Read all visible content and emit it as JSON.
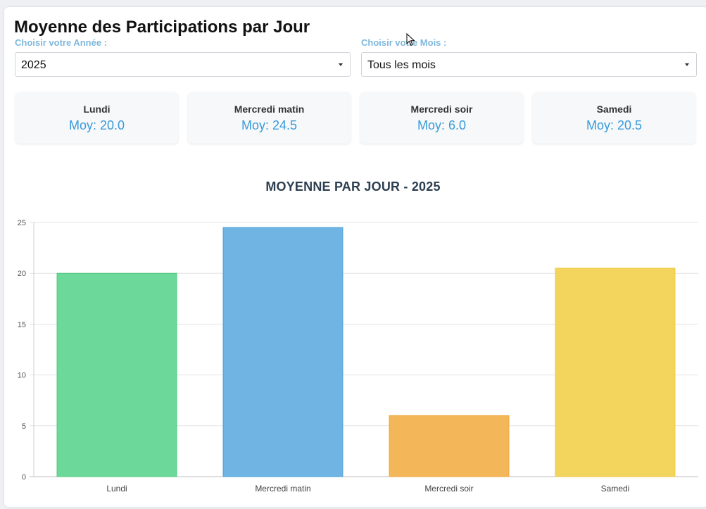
{
  "header": {
    "title": "Moyenne des Participations par Jour"
  },
  "filters": {
    "year_label": "Choisir votre Année :",
    "year_value": "2025",
    "month_label": "Choisir votre Mois :",
    "month_value": "Tous les mois"
  },
  "stats": [
    {
      "day": "Lundi",
      "avg": "Moy: 20.0"
    },
    {
      "day": "Mercredi matin",
      "avg": "Moy: 24.5"
    },
    {
      "day": "Mercredi soir",
      "avg": "Moy: 6.0"
    },
    {
      "day": "Samedi",
      "avg": "Moy: 20.5"
    }
  ],
  "chart_data": {
    "type": "bar",
    "title": "MOYENNE PAR JOUR - 2025",
    "categories": [
      "Lundi",
      "Mercredi matin",
      "Mercredi soir",
      "Samedi"
    ],
    "values": [
      20.0,
      24.5,
      6.0,
      20.5
    ],
    "colors": [
      "#6cd899",
      "#70b4e3",
      "#f3b75a",
      "#f3d45c"
    ],
    "border_colors": [
      "#50c882",
      "#4aa0d8",
      "#f0a53a",
      "#f0c840"
    ],
    "ylim": [
      0,
      25
    ],
    "yticks": [
      "0",
      "5",
      "10",
      "15",
      "20",
      "25"
    ],
    "grid": true,
    "legend": "none"
  }
}
